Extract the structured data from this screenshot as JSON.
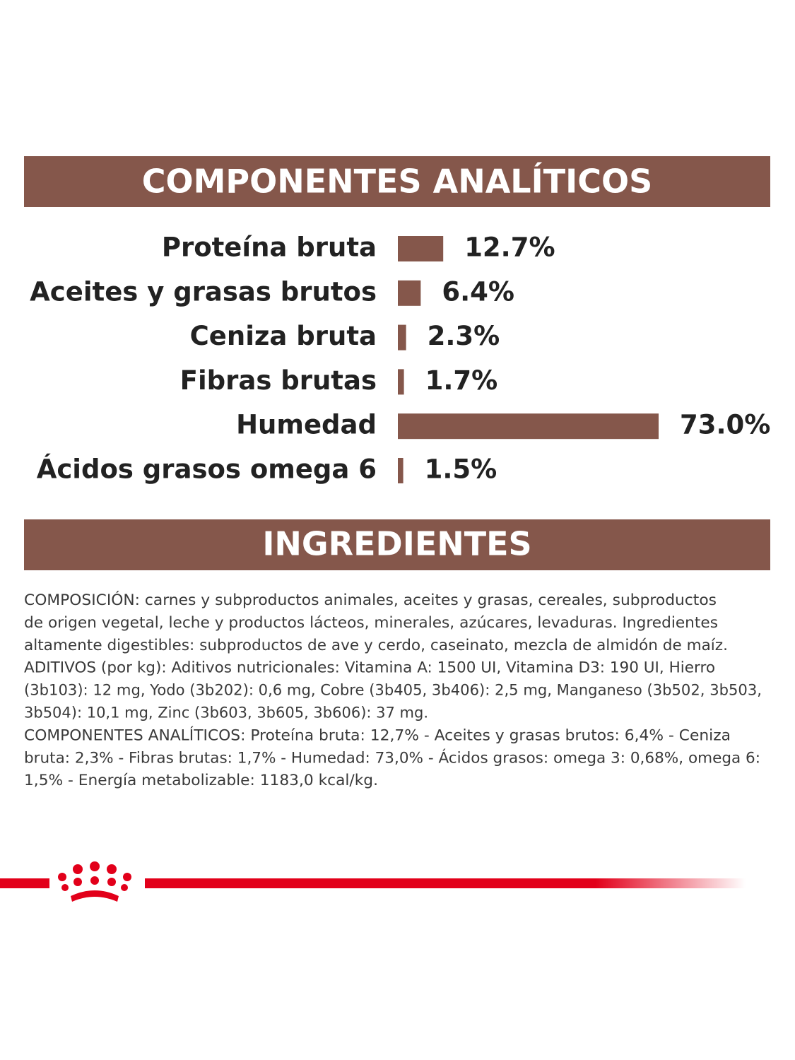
{
  "chart_data": {
    "type": "hbar",
    "title": "COMPONENTES ANALÍTICOS",
    "categories": [
      "Proteína bruta",
      "Aceites y grasas brutos",
      "Ceniza bruta",
      "Fibras brutas",
      "Humedad",
      "Ácidos grasos omega 6"
    ],
    "values": [
      12.7,
      6.4,
      2.3,
      1.7,
      73.0,
      1.5
    ],
    "value_labels": [
      "12.7%",
      "6.4%",
      "2.3%",
      "1.7%",
      "73.0%",
      "1.5%"
    ],
    "color": "#85574b"
  },
  "ingredients": {
    "title": "INGREDIENTES",
    "lines": [
      "COMPOSICIÓN: carnes y subproductos animales, aceites y grasas, cereales, subproductos",
      "de origen vegetal, leche y productos lácteos, minerales, azúcares, levaduras. Ingredientes",
      "altamente digestibles: subproductos de ave y cerdo, caseinato, mezcla de almidón de maíz.",
      "ADITIVOS (por kg): Aditivos nutricionales: Vitamina A: 1500 UI, Vitamina D3: 190 UI, Hierro",
      "(3b103): 12 mg, Yodo (3b202): 0,6 mg, Cobre (3b405, 3b406): 2,5 mg, Manganeso (3b502, 3b503,",
      "3b504): 10,1 mg, Zinc (3b603, 3b605, 3b606): 37 mg.",
      "COMPONENTES ANALÍTICOS: Proteína bruta: 12,7% - Aceites y grasas brutos: 6,4% - Ceniza",
      "bruta: 2,3% - Fibras brutas: 1,7% - Humedad: 73,0% - Ácidos grasos: omega 3: 0,68%, omega 6:",
      "1,5% - Energía metabolizable: 1183,0 kcal/kg."
    ]
  }
}
